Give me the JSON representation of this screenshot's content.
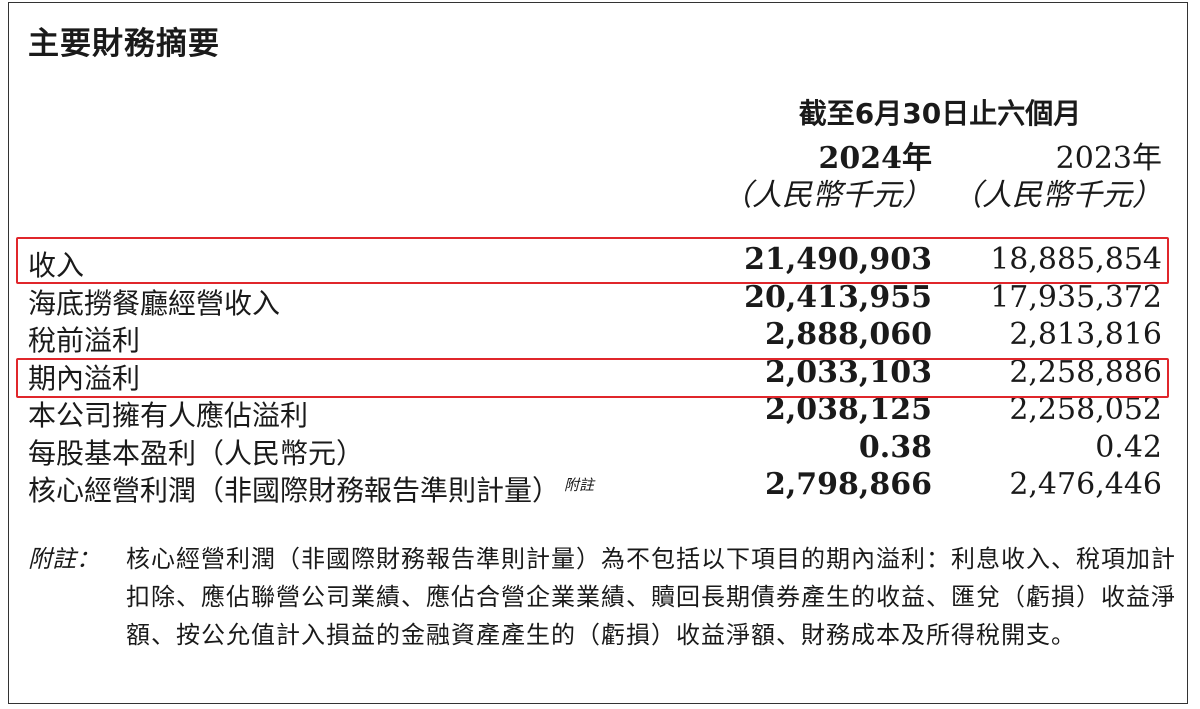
{
  "title": "主要財務摘要",
  "period_header": "截至6月30日止六個月",
  "columns": {
    "y2024": "2024年",
    "y2023": "2023年",
    "unit_2024": "（人民幣千元）",
    "unit_2023": "（人民幣千元）"
  },
  "rows": [
    {
      "label": "收入",
      "v2024": "21,490,903",
      "v2023": "18,885,854",
      "highlighted": true
    },
    {
      "label": "海底撈餐廳經營收入",
      "v2024": "20,413,955",
      "v2023": "17,935,372",
      "highlighted": false
    },
    {
      "label": "稅前溢利",
      "v2024": "2,888,060",
      "v2023": "2,813,816",
      "highlighted": false
    },
    {
      "label": "期內溢利",
      "v2024": "2,033,103",
      "v2023": "2,258,886",
      "highlighted": true
    },
    {
      "label": "本公司擁有人應佔溢利",
      "v2024": "2,038,125",
      "v2023": "2,258,052",
      "highlighted": false
    },
    {
      "label": "每股基本盈利（人民幣元）",
      "v2024": "0.38",
      "v2023": "0.42",
      "highlighted": false
    },
    {
      "label": "核心經營利潤（非國際財務報告準則計量）",
      "sup": "附註",
      "v2024": "2,798,866",
      "v2023": "2,476,446",
      "highlighted": false
    }
  ],
  "note": {
    "label": "附註：",
    "text": "核心經營利潤（非國際財務報告準則計量）為不包括以下項目的期內溢利：利息收入、稅項加計扣除、應佔聯營公司業績、應佔合營企業業績、贖回長期債券產生的收益、匯兌（虧損）收益淨額、按公允值計入損益的金融資產產生的（虧損）收益淨額、財務成本及所得稅開支。"
  },
  "colors": {
    "highlight": "#e0262b",
    "text": "#1a1a1a"
  }
}
